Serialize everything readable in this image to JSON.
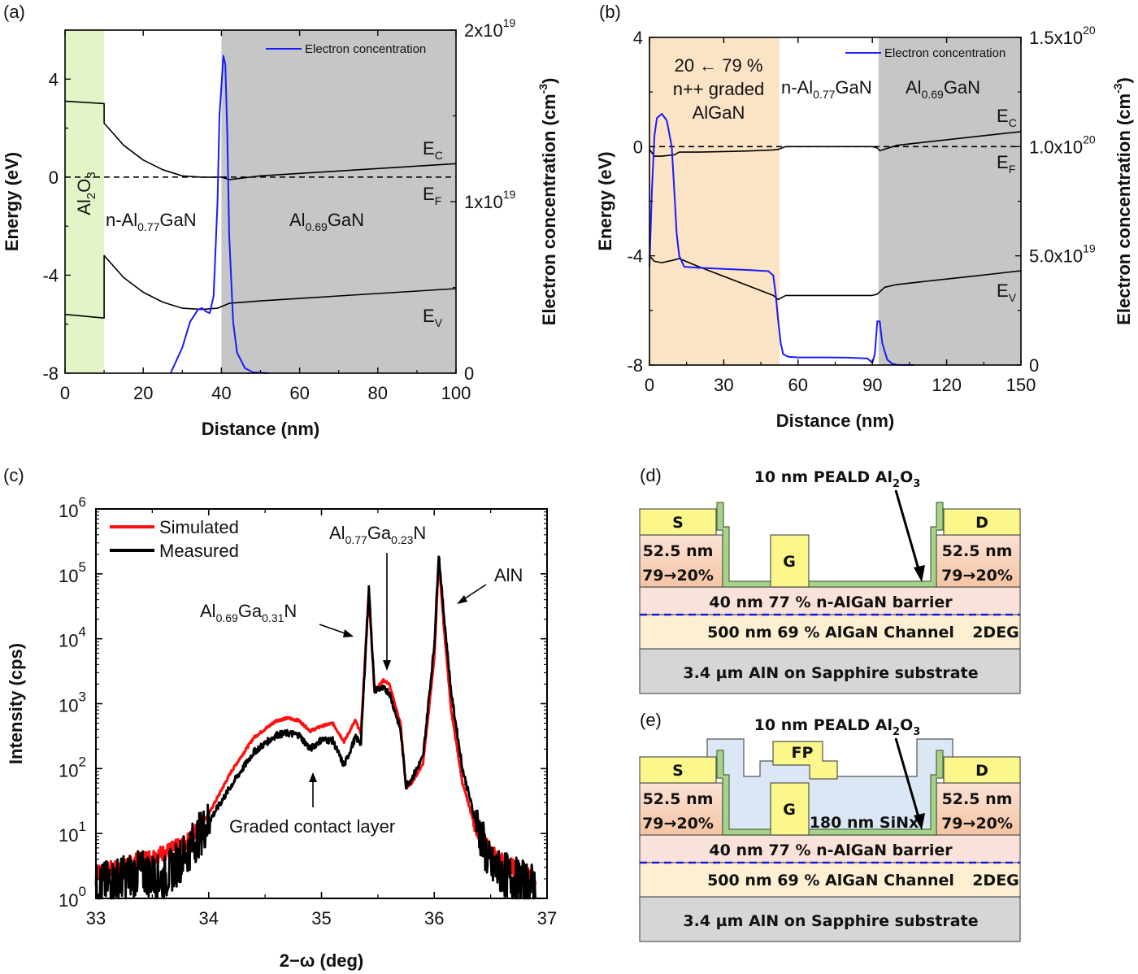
{
  "panels": {
    "a": "(a)",
    "b": "(b)",
    "c": "(c)",
    "d": "(d)",
    "e": "(e)"
  },
  "colors": {
    "al2o3_region": "#e3f5c7",
    "graded_region": "#fbe3c5",
    "al069_region": "#c6c6c6",
    "electron_line": "#1a1aff",
    "simulated_line": "#ff1010",
    "measured_line": "#000000",
    "contact_metal": "#fbf78a",
    "graded_layer": "#f8d0b6",
    "barrier": "#f9e2d9",
    "channel": "#fdf0d2",
    "substrate": "#d6d6d6",
    "al2o3_liner": "#a9d18e",
    "sinx": "#dbe7f4",
    "twodeg": "#1818e8"
  },
  "chart_data": [
    {
      "id": "a",
      "type": "line",
      "title": "",
      "xlabel": "Distance (nm)",
      "ylabel": "Energy (eV)",
      "y2label": "Electron concentration (cm^-3)",
      "xlim": [
        0,
        100
      ],
      "ylim": [
        -8,
        6
      ],
      "y2lim": [
        0,
        2e+19
      ],
      "xticks": [
        "0",
        "20",
        "40",
        "60",
        "80",
        "100"
      ],
      "yticks": [
        "4",
        "0",
        "-4",
        "-8"
      ],
      "y2ticks": [
        {
          "base": "2x10",
          "exp": "19",
          "v": 2e+19
        },
        {
          "base": "1x10",
          "exp": "19",
          "v": 1e+19
        },
        {
          "base": "0",
          "exp": "",
          "v": 0
        }
      ],
      "legend": "Electron concentration",
      "legend_position": "top-right",
      "regions": [
        {
          "label_main": "Al",
          "sub1": "2",
          "mid": "O",
          "sub2": "3",
          "x0": 0,
          "x1": 10,
          "color_key": "al2o3_region"
        },
        {
          "label_main": "n-Al",
          "sub1": "0.77",
          "mid": "GaN",
          "x0": 10,
          "x1": 40,
          "color_key": "none"
        },
        {
          "label_main": "Al",
          "sub1": "0.69",
          "mid": "GaN",
          "x0": 40,
          "x1": 100,
          "color_key": "al069_region"
        }
      ],
      "band_labels": [
        {
          "main": "E",
          "sub": "C"
        },
        {
          "main": "E",
          "sub": "F"
        },
        {
          "main": "E",
          "sub": "V"
        }
      ],
      "series": [
        {
          "name": "E_C",
          "x": [
            0,
            10,
            10,
            15,
            20,
            25,
            30,
            35,
            40,
            42,
            50,
            60,
            70,
            80,
            90,
            100
          ],
          "y": [
            3.1,
            3.0,
            2.2,
            1.3,
            0.7,
            0.3,
            0.05,
            0.0,
            0.0,
            -0.1,
            0.05,
            0.15,
            0.25,
            0.35,
            0.45,
            0.55
          ]
        },
        {
          "name": "E_F",
          "x": [
            0,
            100
          ],
          "y": [
            0,
            0
          ]
        },
        {
          "name": "E_V",
          "x": [
            0,
            10,
            10,
            15,
            20,
            25,
            30,
            35,
            39,
            42,
            50,
            60,
            70,
            80,
            90,
            100
          ],
          "y": [
            -5.6,
            -5.75,
            -3.2,
            -4.1,
            -4.7,
            -5.1,
            -5.35,
            -5.4,
            -5.35,
            -5.15,
            -5.05,
            -4.95,
            -4.85,
            -4.75,
            -4.65,
            -4.55
          ]
        },
        {
          "name": "Electron concentration",
          "axis": "y2",
          "x": [
            27,
            30,
            32,
            34,
            35,
            36,
            37,
            38,
            39,
            39.5,
            40.5,
            41,
            41.5,
            42,
            43,
            44,
            46,
            48,
            52
          ],
          "y": [
            0,
            1.5e+18,
            3e+18,
            3.7e+18,
            3.8e+18,
            3.6e+18,
            3.5e+18,
            4.5e+18,
            1e+19,
            1.5e+19,
            1.85e+19,
            1.8e+19,
            1.4e+19,
            8e+18,
            3e+18,
            1.2e+18,
            3e+17,
            5e+16,
            0
          ]
        }
      ]
    },
    {
      "id": "b",
      "type": "line",
      "title": "",
      "xlabel": "Distance (nm)",
      "ylabel": "Energy (eV)",
      "y2label": "Electron concentration (cm^-3)",
      "xlim": [
        0,
        150
      ],
      "ylim": [
        -8,
        4
      ],
      "y2lim": [
        0,
        1.5e+20
      ],
      "xticks": [
        "0",
        "30",
        "60",
        "90",
        "120",
        "150"
      ],
      "yticks": [
        "4",
        "0",
        "-4",
        "-8"
      ],
      "y2ticks": [
        {
          "base": "1.5x10",
          "exp": "20",
          "v": 1.5e+20
        },
        {
          "base": "1.0x10",
          "exp": "20",
          "v": 1e+20
        },
        {
          "base": "5.0x10",
          "exp": "19",
          "v": 5e+19
        },
        {
          "base": "0",
          "exp": "",
          "v": 0
        }
      ],
      "legend": "Electron concentration",
      "legend_position": "top-right",
      "regions": [
        {
          "lines": [
            "20 ← 79 %",
            "n++ graded",
            "AlGaN"
          ],
          "x0": 0,
          "x1": 52.5,
          "color_key": "graded_region"
        },
        {
          "label_main": "n-Al",
          "sub1": "0.77",
          "mid": "GaN",
          "x0": 52.5,
          "x1": 92.5,
          "color_key": "none"
        },
        {
          "label_main": "Al",
          "sub1": "0.69",
          "mid": "GaN",
          "x0": 92.5,
          "x1": 150,
          "color_key": "al069_region"
        }
      ],
      "band_labels": [
        {
          "main": "E",
          "sub": "C"
        },
        {
          "main": "E",
          "sub": "F"
        },
        {
          "main": "E",
          "sub": "V"
        }
      ],
      "series": [
        {
          "name": "E_C",
          "x": [
            0,
            2,
            5,
            10,
            12,
            20,
            30,
            40,
            50,
            52,
            55,
            60,
            70,
            80,
            90,
            92,
            93,
            100,
            110,
            120,
            130,
            140,
            150
          ],
          "y": [
            -0.1,
            -0.35,
            -0.35,
            -0.3,
            -0.2,
            -0.2,
            -0.18,
            -0.16,
            -0.12,
            -0.1,
            0.0,
            0.0,
            0.0,
            0.0,
            0.0,
            -0.05,
            -0.15,
            0.05,
            0.15,
            0.25,
            0.35,
            0.45,
            0.55
          ]
        },
        {
          "name": "E_F",
          "x": [
            0,
            150
          ],
          "y": [
            0,
            0
          ]
        },
        {
          "name": "E_V",
          "x": [
            0,
            2,
            5,
            10,
            12,
            20,
            30,
            40,
            50,
            52,
            55,
            60,
            70,
            80,
            90,
            92,
            95,
            100,
            110,
            120,
            130,
            140,
            150
          ],
          "y": [
            -4.0,
            -4.2,
            -4.25,
            -4.15,
            -4.1,
            -4.4,
            -4.75,
            -5.1,
            -5.45,
            -5.6,
            -5.45,
            -5.45,
            -5.45,
            -5.45,
            -5.45,
            -5.4,
            -5.15,
            -5.05,
            -4.95,
            -4.85,
            -4.75,
            -4.65,
            -4.55
          ]
        },
        {
          "name": "Electron concentration",
          "axis": "y2",
          "x": [
            0,
            1,
            2,
            3,
            5,
            7,
            9,
            10,
            11,
            12,
            14,
            20,
            30,
            40,
            48,
            50,
            51,
            52,
            53,
            54,
            56,
            60,
            70,
            80,
            88,
            90,
            91,
            92,
            93,
            94,
            96,
            98,
            100,
            107
          ],
          "y": [
            4.5e+19,
            8e+19,
            1.05e+20,
            1.13e+20,
            1.15e+20,
            1.12e+20,
            1e+20,
            8e+19,
            6e+19,
            5e+19,
            4.5e+19,
            4.45e+19,
            4.4e+19,
            4.35e+19,
            4.3e+19,
            4.1e+19,
            3.2e+19,
            2e+19,
            1e+19,
            5e+18,
            3.8e+18,
            3.5e+18,
            3.5e+18,
            3.4e+18,
            3e+18,
            1e+18,
            5e+18,
            2e+19,
            2e+19,
            1e+19,
            2.5e+18,
            6e+17,
            1e+17,
            0
          ]
        }
      ]
    },
    {
      "id": "c",
      "type": "line",
      "scale": "log",
      "title": "",
      "xlabel": "2−ω (deg)",
      "ylabel": "Intensity (cps)",
      "xlim": [
        33,
        37
      ],
      "ylim": [
        1,
        1000000
      ],
      "xticks": [
        "33",
        "34",
        "35",
        "36",
        "37"
      ],
      "yticks": [
        {
          "base": "10",
          "exp": "0"
        },
        {
          "base": "10",
          "exp": "1"
        },
        {
          "base": "10",
          "exp": "2"
        },
        {
          "base": "10",
          "exp": "3"
        },
        {
          "base": "10",
          "exp": "4"
        },
        {
          "base": "10",
          "exp": "5"
        },
        {
          "base": "10",
          "exp": "6"
        }
      ],
      "legend_position": "top-left",
      "annotations": [
        {
          "main": "Al",
          "s1": "0.69",
          "mid": "Ga",
          "s2": "0.31",
          "end": "N",
          "points_to": [
            35.38,
            20000
          ]
        },
        {
          "main": "Al",
          "s1": "0.77",
          "mid": "Ga",
          "s2": "0.23",
          "end": "N",
          "points_to": [
            35.55,
            2500
          ]
        },
        {
          "text": "AlN",
          "points_to": [
            36.07,
            40000
          ]
        },
        {
          "text": "Graded contact layer",
          "points_to": [
            34.9,
            150
          ]
        }
      ],
      "series": [
        {
          "name": "Simulated",
          "x": [
            33.0,
            33.2,
            33.4,
            33.6,
            33.8,
            34.0,
            34.2,
            34.4,
            34.6,
            34.7,
            34.8,
            34.9,
            35.0,
            35.1,
            35.2,
            35.3,
            35.35,
            35.42,
            35.47,
            35.5,
            35.55,
            35.6,
            35.7,
            35.75,
            35.8,
            35.9,
            36.0,
            36.04,
            36.08,
            36.15,
            36.25,
            36.35,
            36.5,
            36.7,
            36.9
          ],
          "y": [
            2.5,
            3,
            4,
            5,
            7,
            20,
            90,
            300,
            550,
            600,
            550,
            380,
            450,
            500,
            260,
            550,
            350,
            55000,
            1500,
            1800,
            2300,
            2000,
            500,
            50,
            60,
            120,
            5000,
            180000,
            20000,
            800,
            60,
            15,
            5,
            3,
            2
          ]
        },
        {
          "name": "Measured",
          "x": [
            33.0,
            33.2,
            33.4,
            33.6,
            33.8,
            34.0,
            34.2,
            34.4,
            34.6,
            34.7,
            34.8,
            34.9,
            35.0,
            35.1,
            35.2,
            35.3,
            35.35,
            35.42,
            35.47,
            35.5,
            35.55,
            35.6,
            35.7,
            35.75,
            35.8,
            35.9,
            36.0,
            36.04,
            36.08,
            36.15,
            36.25,
            36.35,
            36.5,
            36.7,
            36.9
          ],
          "y": [
            1.5,
            2,
            2.5,
            2,
            5,
            15,
            55,
            180,
            330,
            350,
            330,
            200,
            280,
            270,
            110,
            300,
            250,
            60000,
            1600,
            1700,
            1700,
            1500,
            400,
            55,
            70,
            150,
            8000,
            200000,
            30000,
            1500,
            100,
            20,
            3,
            2,
            1.5
          ]
        }
      ]
    }
  ],
  "diagram_d": {
    "title": "10 nm PEALD Al",
    "title_sub1": "2",
    "title_mid": "O",
    "title_sub2": "3",
    "source": "S",
    "drain": "D",
    "gate": "G",
    "graded_line1": "52.5 nm",
    "graded_line2": "79→20%",
    "barrier": "40 nm 77 % n-AlGaN barrier",
    "channel": "500 nm 69 % AlGaN Channel",
    "twodeg": "2DEG",
    "substrate": "3.4 µm AlN on Sapphire substrate"
  },
  "diagram_e": {
    "title": "10 nm PEALD Al",
    "title_sub1": "2",
    "title_mid": "O",
    "title_sub2": "3",
    "source": "S",
    "drain": "D",
    "gate": "G",
    "field_plate": "FP",
    "sinx": "180 nm SiNx",
    "graded_line1": "52.5 nm",
    "graded_line2": "79→20%",
    "barrier": "40 nm 77 % n-AlGaN barrier",
    "channel": "500 nm 69 % AlGaN Channel",
    "twodeg": "2DEG",
    "substrate": "3.4 µm AlN on Sapphire substrate"
  }
}
